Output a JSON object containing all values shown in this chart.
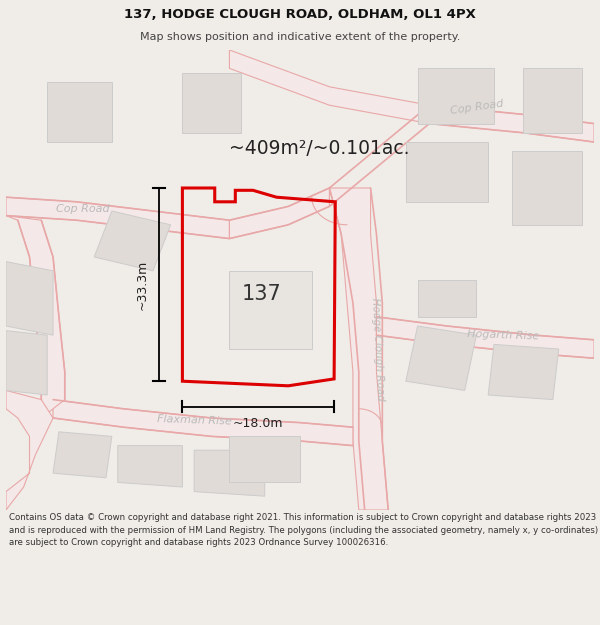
{
  "title_line1": "137, HODGE CLOUGH ROAD, OLDHAM, OL1 4PX",
  "title_line2": "Map shows position and indicative extent of the property.",
  "area_label": "~409m²/~0.101ac.",
  "property_number": "137",
  "dim_width": "~18.0m",
  "dim_height": "~33.3m",
  "copyright_text": "Contains OS data © Crown copyright and database right 2021. This information is subject to Crown copyright and database rights 2023 and is reproduced with the permission of HM Land Registry. The polygons (including the associated geometry, namely x, y co-ordinates) are subject to Crown copyright and database rights 2023 Ordnance Survey 100026316.",
  "bg_color": "#f0ece8",
  "map_bg": "#ffffff",
  "property_fill": "none",
  "property_edge": "#dd0000",
  "road_line_color": "#e8a8a8",
  "road_fill_color": "#f5e8e8",
  "building_fill": "#e0dbd6",
  "building_edge": "#cccccc",
  "dim_line_color": "#222222",
  "title_color": "#111111",
  "subtitle_color": "#444444",
  "road_text_color": "#aaaaaa",
  "area_label_color": "#222222",
  "prop_num_color": "#333333",
  "copyright_color": "#333333"
}
